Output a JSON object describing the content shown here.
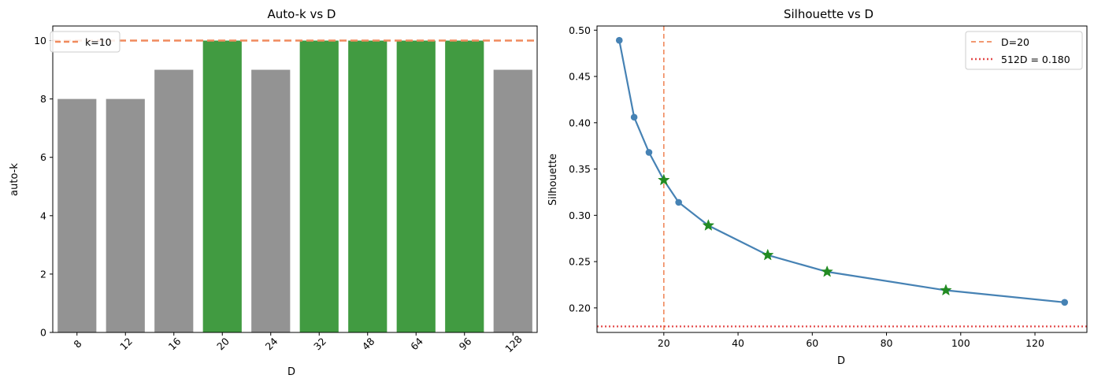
{
  "chart_data": [
    {
      "type": "bar",
      "title": "Auto-k vs D",
      "xlabel": "D",
      "ylabel": "auto-k",
      "categories": [
        "8",
        "12",
        "16",
        "20",
        "24",
        "32",
        "48",
        "64",
        "96",
        "128"
      ],
      "values": [
        8,
        8,
        9,
        10,
        9,
        10,
        10,
        10,
        10,
        9
      ],
      "bar_colors": [
        "#939393",
        "#939393",
        "#939393",
        "#419b41",
        "#939393",
        "#419b41",
        "#419b41",
        "#419b41",
        "#419b41",
        "#939393"
      ],
      "ylim": [
        0,
        10.5
      ],
      "yticks": [
        "0",
        "2",
        "4",
        "6",
        "8",
        "10"
      ],
      "hline": {
        "y": 10,
        "label": "k=10",
        "color": "#f08a5d",
        "style": "dashed"
      },
      "legend_position": "top-left",
      "grid": false
    },
    {
      "type": "line",
      "title": "Silhouette vs D",
      "xlabel": "D",
      "ylabel": "Silhouette",
      "x": [
        8,
        12,
        16,
        20,
        24,
        32,
        48,
        64,
        96,
        128
      ],
      "y": [
        0.489,
        0.406,
        0.368,
        0.338,
        0.314,
        0.289,
        0.257,
        0.239,
        0.219,
        0.206
      ],
      "star_points_x": [
        20,
        32,
        48,
        64,
        96
      ],
      "line_color": "#4682b4",
      "star_color": "#228b22",
      "xlim": [
        2,
        134
      ],
      "ylim": [
        0.1735,
        0.5045
      ],
      "xticks": [
        "20",
        "40",
        "60",
        "80",
        "100",
        "120"
      ],
      "yticks": [
        "0.20",
        "0.25",
        "0.30",
        "0.35",
        "0.40",
        "0.45",
        "0.50"
      ],
      "vline": {
        "x": 20,
        "label": "D=20",
        "color": "#f08a5d",
        "style": "dashed"
      },
      "hline": {
        "y": 0.18,
        "label": "512D = 0.180",
        "color": "#e34a4a",
        "style": "dotted"
      },
      "legend_position": "top-right",
      "grid": false
    }
  ]
}
